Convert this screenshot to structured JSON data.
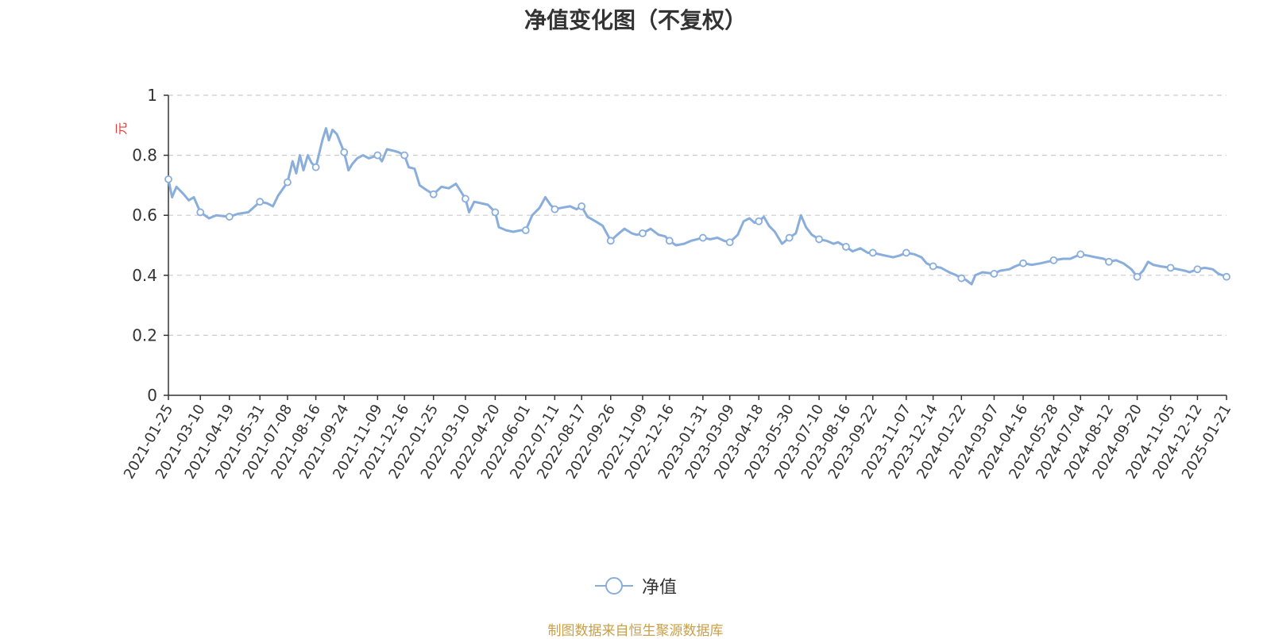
{
  "title": "净值变化图（不复权）",
  "yunit": "元",
  "legend": {
    "label": "净值"
  },
  "source": "制图数据来自恒生聚源数据库",
  "colors": {
    "series": "#8aaedc",
    "axis": "#333333",
    "grid": "#cccccc"
  },
  "chart_data": {
    "type": "line",
    "ylim": [
      0,
      1
    ],
    "yticks": [
      "0",
      "0.2",
      "0.4",
      "0.6",
      "0.8",
      "1"
    ],
    "grid": "dashed-horizontal",
    "legend_position": "bottom",
    "x": [
      "2021-01-25",
      "2021-03-10",
      "2021-04-19",
      "2021-05-31",
      "2021-07-08",
      "2021-08-16",
      "2021-09-24",
      "2021-11-09",
      "2021-12-16",
      "2022-01-25",
      "2022-03-10",
      "2022-04-20",
      "2022-06-01",
      "2022-07-11",
      "2022-08-17",
      "2022-09-26",
      "2022-11-09",
      "2022-12-16",
      "2023-01-31",
      "2023-03-09",
      "2023-04-18",
      "2023-05-30",
      "2023-07-10",
      "2023-08-16",
      "2023-09-22",
      "2023-11-07",
      "2023-12-14",
      "2024-01-22",
      "2024-03-07",
      "2024-04-16",
      "2024-05-28",
      "2024-07-04",
      "2024-08-12",
      "2024-09-20",
      "2024-11-05",
      "2024-12-12",
      "2025-01-21"
    ],
    "series": [
      {
        "name": "净值",
        "values": [
          0.72,
          0.61,
          0.595,
          0.645,
          0.71,
          0.76,
          0.81,
          0.8,
          0.8,
          0.67,
          0.655,
          0.61,
          0.55,
          0.62,
          0.63,
          0.515,
          0.54,
          0.515,
          0.525,
          0.51,
          0.58,
          0.525,
          0.52,
          0.495,
          0.475,
          0.475,
          0.43,
          0.39,
          0.405,
          0.44,
          0.45,
          0.47,
          0.445,
          0.395,
          0.425,
          0.42,
          0.395
        ],
        "points": [
          [
            "2021-01-25",
            0.72
          ],
          [
            "2021-01-30",
            0.66
          ],
          [
            "2021-02-05",
            0.695
          ],
          [
            "2021-02-15",
            0.67
          ],
          [
            "2021-02-22",
            0.65
          ],
          [
            "2021-03-01",
            0.66
          ],
          [
            "2021-03-10",
            0.61
          ],
          [
            "2021-03-22",
            0.59
          ],
          [
            "2021-04-01",
            0.6
          ],
          [
            "2021-04-19",
            0.595
          ],
          [
            "2021-05-01",
            0.605
          ],
          [
            "2021-05-15",
            0.61
          ],
          [
            "2021-05-31",
            0.645
          ],
          [
            "2021-06-10",
            0.64
          ],
          [
            "2021-06-18",
            0.63
          ],
          [
            "2021-06-25",
            0.665
          ],
          [
            "2021-07-08",
            0.71
          ],
          [
            "2021-07-15",
            0.78
          ],
          [
            "2021-07-20",
            0.74
          ],
          [
            "2021-07-25",
            0.8
          ],
          [
            "2021-07-30",
            0.75
          ],
          [
            "2021-08-05",
            0.8
          ],
          [
            "2021-08-10",
            0.775
          ],
          [
            "2021-08-16",
            0.76
          ],
          [
            "2021-08-25",
            0.85
          ],
          [
            "2021-08-30",
            0.89
          ],
          [
            "2021-09-03",
            0.85
          ],
          [
            "2021-09-08",
            0.885
          ],
          [
            "2021-09-14",
            0.87
          ],
          [
            "2021-09-24",
            0.81
          ],
          [
            "2021-09-30",
            0.75
          ],
          [
            "2021-10-05",
            0.77
          ],
          [
            "2021-10-12",
            0.79
          ],
          [
            "2021-10-20",
            0.8
          ],
          [
            "2021-10-28",
            0.79
          ],
          [
            "2021-11-09",
            0.8
          ],
          [
            "2021-11-15",
            0.78
          ],
          [
            "2021-11-22",
            0.82
          ],
          [
            "2021-12-01",
            0.815
          ],
          [
            "2021-12-08",
            0.81
          ],
          [
            "2021-12-16",
            0.8
          ],
          [
            "2021-12-22",
            0.76
          ],
          [
            "2021-12-30",
            0.755
          ],
          [
            "2022-01-06",
            0.7
          ],
          [
            "2022-01-15",
            0.685
          ],
          [
            "2022-01-25",
            0.67
          ],
          [
            "2022-02-05",
            0.695
          ],
          [
            "2022-02-15",
            0.69
          ],
          [
            "2022-02-25",
            0.705
          ],
          [
            "2022-03-10",
            0.655
          ],
          [
            "2022-03-15",
            0.61
          ],
          [
            "2022-03-22",
            0.645
          ],
          [
            "2022-04-01",
            0.64
          ],
          [
            "2022-04-10",
            0.635
          ],
          [
            "2022-04-20",
            0.61
          ],
          [
            "2022-04-25",
            0.56
          ],
          [
            "2022-05-05",
            0.55
          ],
          [
            "2022-05-15",
            0.545
          ],
          [
            "2022-05-25",
            0.55
          ],
          [
            "2022-06-01",
            0.55
          ],
          [
            "2022-06-10",
            0.6
          ],
          [
            "2022-06-20",
            0.625
          ],
          [
            "2022-06-28",
            0.66
          ],
          [
            "2022-07-05",
            0.635
          ],
          [
            "2022-07-11",
            0.62
          ],
          [
            "2022-07-20",
            0.625
          ],
          [
            "2022-08-01",
            0.63
          ],
          [
            "2022-08-10",
            0.62
          ],
          [
            "2022-08-17",
            0.63
          ],
          [
            "2022-08-25",
            0.595
          ],
          [
            "2022-09-05",
            0.58
          ],
          [
            "2022-09-15",
            0.565
          ],
          [
            "2022-09-26",
            0.515
          ],
          [
            "2022-10-05",
            0.535
          ],
          [
            "2022-10-15",
            0.555
          ],
          [
            "2022-10-25",
            0.54
          ],
          [
            "2022-11-01",
            0.535
          ],
          [
            "2022-11-09",
            0.54
          ],
          [
            "2022-11-20",
            0.555
          ],
          [
            "2022-12-01",
            0.535
          ],
          [
            "2022-12-10",
            0.53
          ],
          [
            "2022-12-16",
            0.515
          ],
          [
            "2022-12-25",
            0.5
          ],
          [
            "2023-01-05",
            0.505
          ],
          [
            "2023-01-15",
            0.515
          ],
          [
            "2023-01-31",
            0.525
          ],
          [
            "2023-02-10",
            0.52
          ],
          [
            "2023-02-20",
            0.525
          ],
          [
            "2023-03-01",
            0.515
          ],
          [
            "2023-03-09",
            0.51
          ],
          [
            "2023-03-20",
            0.535
          ],
          [
            "2023-03-28",
            0.58
          ],
          [
            "2023-04-05",
            0.59
          ],
          [
            "2023-04-12",
            0.575
          ],
          [
            "2023-04-18",
            0.58
          ],
          [
            "2023-04-25",
            0.595
          ],
          [
            "2023-05-02",
            0.565
          ],
          [
            "2023-05-10",
            0.545
          ],
          [
            "2023-05-20",
            0.505
          ],
          [
            "2023-05-30",
            0.525
          ],
          [
            "2023-06-08",
            0.54
          ],
          [
            "2023-06-15",
            0.6
          ],
          [
            "2023-06-22",
            0.56
          ],
          [
            "2023-06-30",
            0.535
          ],
          [
            "2023-07-10",
            0.52
          ],
          [
            "2023-07-20",
            0.515
          ],
          [
            "2023-07-30",
            0.505
          ],
          [
            "2023-08-05",
            0.51
          ],
          [
            "2023-08-16",
            0.495
          ],
          [
            "2023-08-25",
            0.48
          ],
          [
            "2023-09-05",
            0.49
          ],
          [
            "2023-09-15",
            0.475
          ],
          [
            "2023-09-22",
            0.475
          ],
          [
            "2023-10-10",
            0.465
          ],
          [
            "2023-10-20",
            0.46
          ],
          [
            "2023-10-28",
            0.465
          ],
          [
            "2023-11-07",
            0.475
          ],
          [
            "2023-11-18",
            0.47
          ],
          [
            "2023-11-28",
            0.46
          ],
          [
            "2023-12-05",
            0.44
          ],
          [
            "2023-12-14",
            0.43
          ],
          [
            "2023-12-25",
            0.425
          ],
          [
            "2024-01-05",
            0.41
          ],
          [
            "2024-01-15",
            0.4
          ],
          [
            "2024-01-22",
            0.39
          ],
          [
            "2024-01-28",
            0.385
          ],
          [
            "2024-02-05",
            0.37
          ],
          [
            "2024-02-10",
            0.4
          ],
          [
            "2024-02-20",
            0.41
          ],
          [
            "2024-03-07",
            0.405
          ],
          [
            "2024-03-15",
            0.415
          ],
          [
            "2024-03-28",
            0.42
          ],
          [
            "2024-04-05",
            0.43
          ],
          [
            "2024-04-16",
            0.44
          ],
          [
            "2024-04-28",
            0.435
          ],
          [
            "2024-05-10",
            0.44
          ],
          [
            "2024-05-28",
            0.45
          ],
          [
            "2024-06-10",
            0.455
          ],
          [
            "2024-06-20",
            0.455
          ],
          [
            "2024-07-04",
            0.47
          ],
          [
            "2024-07-15",
            0.465
          ],
          [
            "2024-07-25",
            0.46
          ],
          [
            "2024-08-05",
            0.455
          ],
          [
            "2024-08-12",
            0.445
          ],
          [
            "2024-08-22",
            0.45
          ],
          [
            "2024-09-01",
            0.44
          ],
          [
            "2024-09-12",
            0.42
          ],
          [
            "2024-09-20",
            0.395
          ],
          [
            "2024-09-28",
            0.415
          ],
          [
            "2024-10-05",
            0.445
          ],
          [
            "2024-10-12",
            0.435
          ],
          [
            "2024-10-22",
            0.43
          ],
          [
            "2024-11-05",
            0.425
          ],
          [
            "2024-11-15",
            0.42
          ],
          [
            "2024-11-25",
            0.415
          ],
          [
            "2024-12-01",
            0.41
          ],
          [
            "2024-12-12",
            0.42
          ],
          [
            "2024-12-22",
            0.425
          ],
          [
            "2025-01-02",
            0.42
          ],
          [
            "2025-01-10",
            0.405
          ],
          [
            "2025-01-21",
            0.395
          ]
        ]
      }
    ]
  }
}
